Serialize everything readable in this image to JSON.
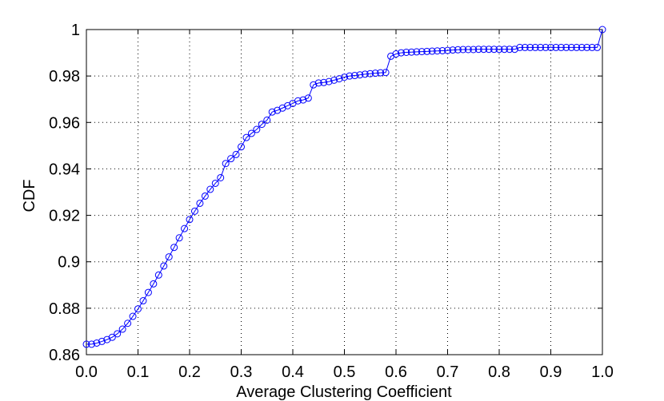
{
  "chart_data": {
    "type": "line",
    "title": "",
    "xlabel": "Average Clustering Coefficient",
    "ylabel": "CDF",
    "xlim": [
      0,
      1
    ],
    "ylim": [
      0.86,
      1
    ],
    "xticks": [
      "0.0",
      "0.1",
      "0.2",
      "0.3",
      "0.4",
      "0.5",
      "0.6",
      "0.7",
      "0.8",
      "0.9",
      "1.0"
    ],
    "yticks": [
      "0.86",
      "0.88",
      "0.9",
      "0.92",
      "0.94",
      "0.96",
      "0.98",
      "1"
    ],
    "grid": true,
    "legend": "none",
    "marker": "circle",
    "color": "#0000ff",
    "series": [
      {
        "x": [
          0.0,
          0.01,
          0.02,
          0.03,
          0.04,
          0.05,
          0.06,
          0.07,
          0.08,
          0.09,
          0.1,
          0.11,
          0.12,
          0.13,
          0.14,
          0.15,
          0.16,
          0.17,
          0.18,
          0.19,
          0.2,
          0.21,
          0.22,
          0.23,
          0.24,
          0.25,
          0.26,
          0.27,
          0.28,
          0.29,
          0.3,
          0.31,
          0.32,
          0.33,
          0.34,
          0.35,
          0.36,
          0.37,
          0.38,
          0.39,
          0.4,
          0.41,
          0.42,
          0.43,
          0.44,
          0.45,
          0.46,
          0.47,
          0.48,
          0.49,
          0.5,
          0.51,
          0.52,
          0.53,
          0.54,
          0.55,
          0.56,
          0.57,
          0.58,
          0.59,
          0.6,
          0.61,
          0.62,
          0.63,
          0.64,
          0.65,
          0.66,
          0.67,
          0.68,
          0.69,
          0.7,
          0.71,
          0.72,
          0.73,
          0.74,
          0.75,
          0.76,
          0.77,
          0.78,
          0.79,
          0.8,
          0.81,
          0.82,
          0.83,
          0.84,
          0.85,
          0.86,
          0.87,
          0.88,
          0.89,
          0.9,
          0.91,
          0.92,
          0.93,
          0.94,
          0.95,
          0.96,
          0.97,
          0.98,
          0.99,
          1.0
        ],
        "y": [
          0.8645,
          0.8645,
          0.865,
          0.8657,
          0.8665,
          0.8675,
          0.869,
          0.871,
          0.8735,
          0.8765,
          0.8797,
          0.8832,
          0.8868,
          0.8905,
          0.8943,
          0.8982,
          0.9021,
          0.9062,
          0.9103,
          0.9143,
          0.9182,
          0.9218,
          0.9252,
          0.9283,
          0.9312,
          0.9338,
          0.9362,
          0.9423,
          0.9444,
          0.9462,
          0.9495,
          0.9535,
          0.9553,
          0.957,
          0.9592,
          0.961,
          0.9645,
          0.9652,
          0.9662,
          0.9672,
          0.9682,
          0.9693,
          0.9697,
          0.9705,
          0.9762,
          0.977,
          0.9772,
          0.9776,
          0.9782,
          0.9788,
          0.9795,
          0.98,
          0.9802,
          0.9805,
          0.9808,
          0.981,
          0.9812,
          0.9814,
          0.9815,
          0.9885,
          0.9895,
          0.99,
          0.9902,
          0.9903,
          0.9904,
          0.9905,
          0.9906,
          0.9907,
          0.9908,
          0.9909,
          0.991,
          0.9912,
          0.9913,
          0.9914,
          0.9914,
          0.9914,
          0.9915,
          0.9915,
          0.9915,
          0.9915,
          0.9915,
          0.9915,
          0.9915,
          0.9915,
          0.9923,
          0.9923,
          0.9923,
          0.9923,
          0.9923,
          0.9923,
          0.9923,
          0.9923,
          0.9923,
          0.9923,
          0.9923,
          0.9923,
          0.9923,
          0.9923,
          0.9923,
          0.9923,
          1.0
        ]
      }
    ]
  }
}
